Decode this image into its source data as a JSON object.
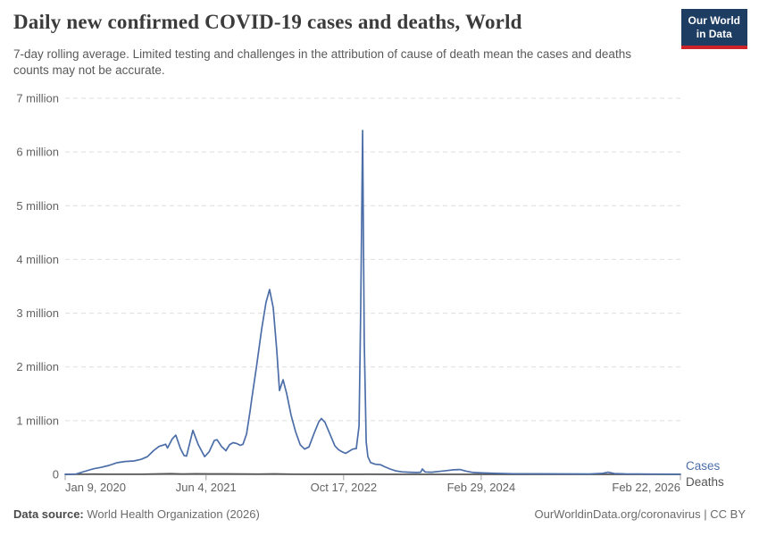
{
  "header": {
    "title": "Daily new confirmed COVID-19 cases and deaths, World",
    "subtitle": "7-day rolling average. Limited testing and challenges in the attribution of cause of death mean the cases and deaths counts may not be accurate.",
    "logo": {
      "line1": "Our World",
      "line2": "in Data",
      "bg_color": "#1d3d63",
      "stripe_color": "#cd2328"
    }
  },
  "footer": {
    "datasource_label": "Data source:",
    "datasource_value": " World Health Organization (2026)",
    "rights": "OurWorldinData.org/coronavirus | CC BY"
  },
  "chart_data": {
    "type": "line",
    "title": "Daily new confirmed COVID-19 cases and deaths, World",
    "xlabel": "",
    "ylabel": "",
    "x_range": [
      "2020-01-09",
      "2026-02-22"
    ],
    "y_range": [
      0,
      7000000
    ],
    "grid": "horizontal-dashed",
    "legend_position": "right-end-labels",
    "axis_color": "#8f8f8f",
    "grid_color": "#dedede",
    "y_ticks": [
      {
        "value": 0,
        "label": "0"
      },
      {
        "value": 1000000,
        "label": "1 million"
      },
      {
        "value": 2000000,
        "label": "2 million"
      },
      {
        "value": 3000000,
        "label": "3 million"
      },
      {
        "value": 4000000,
        "label": "4 million"
      },
      {
        "value": 5000000,
        "label": "5 million"
      },
      {
        "value": 6000000,
        "label": "6 million"
      },
      {
        "value": 7000000,
        "label": "7 million"
      }
    ],
    "x_ticks": [
      {
        "date": "2020-01-09",
        "label": "Jan 9, 2020",
        "align": "start"
      },
      {
        "date": "2021-06-04",
        "label": "Jun 4, 2021",
        "align": "middle"
      },
      {
        "date": "2022-10-17",
        "label": "Oct 17, 2022",
        "align": "middle"
      },
      {
        "date": "2024-02-29",
        "label": "Feb 29, 2024",
        "align": "middle"
      },
      {
        "date": "2026-02-22",
        "label": "Feb 22, 2026",
        "align": "end"
      }
    ],
    "series": [
      {
        "name": "Cases",
        "color": "#4C6EA8",
        "points": [
          [
            "2020-01-09",
            500
          ],
          [
            "2020-02-17",
            5000
          ],
          [
            "2020-03-04",
            30000
          ],
          [
            "2020-03-27",
            67000
          ],
          [
            "2020-04-22",
            105000
          ],
          [
            "2020-05-18",
            130000
          ],
          [
            "2020-06-16",
            166000
          ],
          [
            "2020-07-15",
            216000
          ],
          [
            "2020-08-13",
            240000
          ],
          [
            "2020-09-15",
            250000
          ],
          [
            "2020-10-11",
            280000
          ],
          [
            "2020-11-03",
            330000
          ],
          [
            "2020-11-25",
            440000
          ],
          [
            "2020-12-15",
            520000
          ],
          [
            "2020-12-31",
            545000
          ],
          [
            "2021-01-08",
            560000
          ],
          [
            "2021-01-15",
            490000
          ],
          [
            "2021-02-01",
            660000
          ],
          [
            "2021-02-14",
            730000
          ],
          [
            "2021-03-03",
            480000
          ],
          [
            "2021-03-16",
            350000
          ],
          [
            "2021-03-25",
            340000
          ],
          [
            "2021-04-17",
            820000
          ],
          [
            "2021-05-07",
            550000
          ],
          [
            "2021-05-30",
            330000
          ],
          [
            "2021-06-15",
            420000
          ],
          [
            "2021-07-04",
            630000
          ],
          [
            "2021-07-14",
            645000
          ],
          [
            "2021-07-30",
            520000
          ],
          [
            "2021-08-15",
            440000
          ],
          [
            "2021-08-28",
            550000
          ],
          [
            "2021-09-10",
            590000
          ],
          [
            "2021-09-23",
            575000
          ],
          [
            "2021-10-06",
            540000
          ],
          [
            "2021-10-16",
            560000
          ],
          [
            "2021-10-29",
            750000
          ],
          [
            "2021-11-11",
            1180000
          ],
          [
            "2021-11-17",
            1400000
          ],
          [
            "2021-12-04",
            2000000
          ],
          [
            "2021-12-23",
            2700000
          ],
          [
            "2022-01-08",
            3200000
          ],
          [
            "2022-01-21",
            3440000
          ],
          [
            "2022-02-03",
            3100000
          ],
          [
            "2022-02-16",
            2300000
          ],
          [
            "2022-02-26",
            1560000
          ],
          [
            "2022-03-11",
            1760000
          ],
          [
            "2022-03-24",
            1500000
          ],
          [
            "2022-04-09",
            1100000
          ],
          [
            "2022-04-25",
            800000
          ],
          [
            "2022-05-12",
            550000
          ],
          [
            "2022-05-28",
            470000
          ],
          [
            "2022-06-13",
            510000
          ],
          [
            "2022-07-02",
            770000
          ],
          [
            "2022-07-19",
            980000
          ],
          [
            "2022-07-28",
            1040000
          ],
          [
            "2022-08-10",
            970000
          ],
          [
            "2022-08-30",
            730000
          ],
          [
            "2022-09-15",
            530000
          ],
          [
            "2022-09-28",
            460000
          ],
          [
            "2022-10-11",
            420000
          ],
          [
            "2022-10-24",
            390000
          ],
          [
            "2022-11-06",
            430000
          ],
          [
            "2022-11-19",
            470000
          ],
          [
            "2022-12-02",
            480000
          ],
          [
            "2022-12-12",
            900000
          ],
          [
            "2022-12-18",
            3000000
          ],
          [
            "2022-12-25",
            6400000
          ],
          [
            "2022-12-31",
            2500000
          ],
          [
            "2023-01-07",
            600000
          ],
          [
            "2023-01-13",
            330000
          ],
          [
            "2023-01-23",
            220000
          ],
          [
            "2023-02-08",
            190000
          ],
          [
            "2023-02-28",
            180000
          ],
          [
            "2023-03-16",
            140000
          ],
          [
            "2023-04-04",
            100000
          ],
          [
            "2023-04-24",
            65000
          ],
          [
            "2023-05-17",
            47000
          ],
          [
            "2023-06-12",
            40000
          ],
          [
            "2023-07-08",
            35000
          ],
          [
            "2023-07-24",
            40000
          ],
          [
            "2023-07-30",
            100000
          ],
          [
            "2023-08-09",
            45000
          ],
          [
            "2023-09-01",
            40000
          ],
          [
            "2023-09-30",
            55000
          ],
          [
            "2023-10-26",
            70000
          ],
          [
            "2023-11-21",
            85000
          ],
          [
            "2023-12-14",
            90000
          ],
          [
            "2024-01-05",
            60000
          ],
          [
            "2024-01-31",
            35000
          ],
          [
            "2024-03-04",
            27000
          ],
          [
            "2024-04-21",
            18000
          ],
          [
            "2024-06-25",
            12000
          ],
          [
            "2024-09-14",
            10000
          ],
          [
            "2024-12-21",
            8000
          ],
          [
            "2025-03-28",
            7000
          ],
          [
            "2025-05-16",
            20000
          ],
          [
            "2025-06-04",
            40000
          ],
          [
            "2025-06-27",
            15000
          ],
          [
            "2025-08-05",
            8000
          ],
          [
            "2025-11-10",
            5000
          ],
          [
            "2026-02-22",
            4000
          ]
        ]
      },
      {
        "name": "Deaths",
        "color": "#545454",
        "points": [
          [
            "2020-01-09",
            100
          ],
          [
            "2020-04-18",
            7000
          ],
          [
            "2020-06-01",
            4600
          ],
          [
            "2020-08-05",
            5800
          ],
          [
            "2020-10-15",
            5500
          ],
          [
            "2021-01-26",
            14500
          ],
          [
            "2021-03-10",
            8800
          ],
          [
            "2021-04-28",
            13000
          ],
          [
            "2021-06-15",
            9500
          ],
          [
            "2021-08-20",
            10000
          ],
          [
            "2021-10-15",
            7500
          ],
          [
            "2021-12-10",
            7000
          ],
          [
            "2022-02-08",
            10500
          ],
          [
            "2022-04-15",
            4000
          ],
          [
            "2022-07-01",
            1700
          ],
          [
            "2022-09-01",
            1800
          ],
          [
            "2022-12-20",
            1700
          ],
          [
            "2023-01-12",
            4000
          ],
          [
            "2023-03-01",
            1500
          ],
          [
            "2023-06-01",
            600
          ],
          [
            "2023-12-01",
            700
          ],
          [
            "2024-06-01",
            250
          ],
          [
            "2025-06-01",
            120
          ],
          [
            "2026-02-22",
            80
          ]
        ]
      }
    ]
  }
}
